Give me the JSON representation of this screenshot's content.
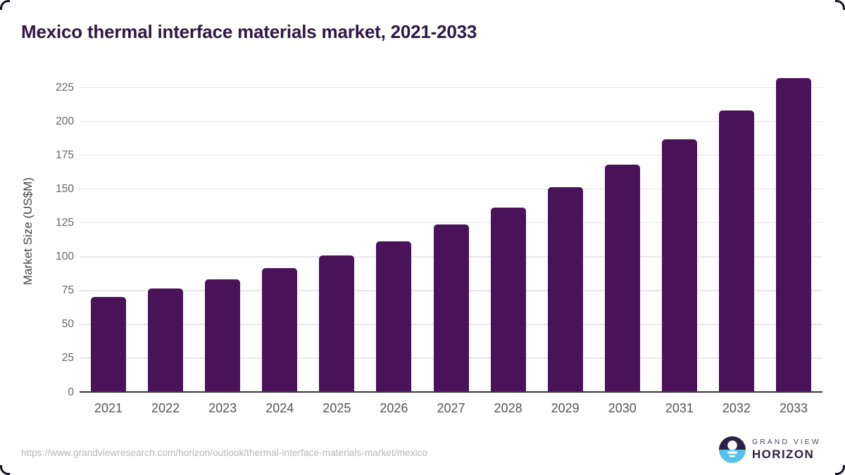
{
  "title": "Mexico thermal interface materials market, 2021-2033",
  "chart_data": {
    "type": "bar",
    "title": "Mexico thermal interface materials market, 2021-2033",
    "categories": [
      "2021",
      "2022",
      "2023",
      "2024",
      "2025",
      "2026",
      "2027",
      "2028",
      "2029",
      "2030",
      "2031",
      "2032",
      "2033"
    ],
    "values": [
      70,
      76.5,
      83.5,
      91.5,
      101,
      111.5,
      124,
      136.5,
      151.5,
      168,
      187,
      208,
      232
    ],
    "series_name": "Market Size",
    "xlabel": "",
    "ylabel": "Market Size (US$M)",
    "ylim": [
      0,
      235
    ],
    "yticks": [
      0,
      25,
      50,
      75,
      100,
      125,
      150,
      175,
      200,
      225
    ],
    "grid": true,
    "legend": "none",
    "bar_color": "#4a1259"
  },
  "colors": {
    "bar": "#4a1259",
    "title": "#2e1745",
    "axis_line": "#3a3a3a",
    "gridline": "#e8e8e8",
    "y_tick_label": "#666666",
    "x_tick_label": "#555555",
    "y_axis_title": "#444444",
    "url_text": "#b5b5b5",
    "brand_dark": "#2b2045",
    "brand_blue": "#56c2ec"
  },
  "footer": {
    "source_url": "https://www.grandviewresearch.com/horizon/outlook/thermal-interface-materials-market/mexico",
    "brand": {
      "icon": "horizon-sunrise-logo-icon",
      "line1": "GRAND VIEW",
      "line2": "HORIZON"
    }
  }
}
